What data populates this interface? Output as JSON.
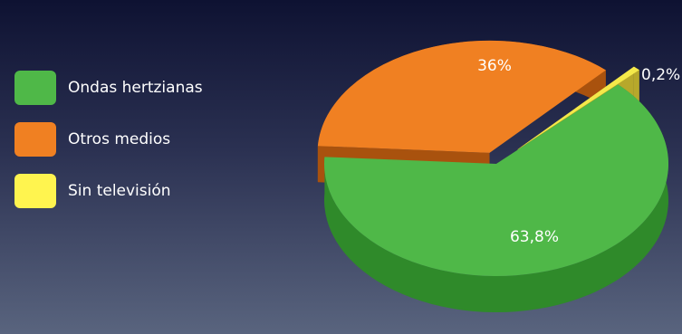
{
  "chart_data": {
    "type": "pie",
    "legend_position": "left",
    "title": "",
    "slices": [
      {
        "label": "Ondas hertzianas",
        "value": 63.8,
        "value_label": "63,8%",
        "color": "#4fb848",
        "dark": "#2f8a2a"
      },
      {
        "label": "Otros medios",
        "value": 36,
        "value_label": "36%",
        "color": "#f08022",
        "dark": "#a9520e"
      },
      {
        "label": "Sin televisión",
        "value": 0.2,
        "value_label": "0,2%",
        "color": "#f4e94a",
        "dark": "#b7a82b"
      }
    ],
    "legend": [
      {
        "label": "Ondas hertzianas",
        "color": "#4fb848"
      },
      {
        "label": "Otros medios",
        "color": "#f08022"
      },
      {
        "label": "Sin televisión",
        "color": "#fff44f"
      }
    ]
  }
}
